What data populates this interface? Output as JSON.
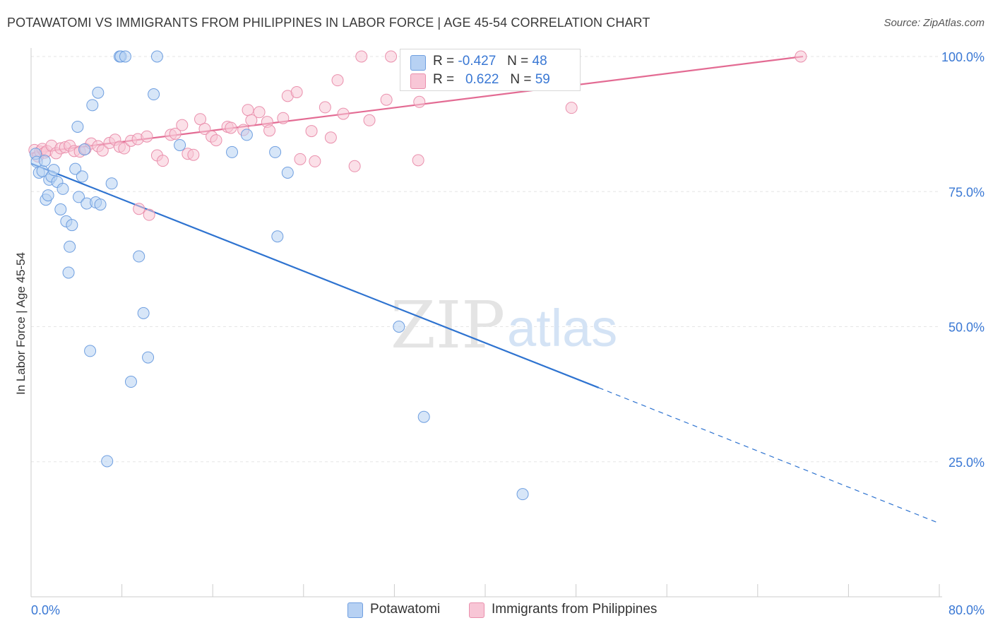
{
  "title": "POTAWATOMI VS IMMIGRANTS FROM PHILIPPINES IN LABOR FORCE | AGE 45-54 CORRELATION CHART",
  "source": "Source: ZipAtlas.com",
  "watermark": {
    "zip": "ZIP",
    "atlas": "atlas"
  },
  "legend": {
    "r_label": "R =",
    "n_label": "N =",
    "entries": [
      {
        "r": "-0.427",
        "n": "48"
      },
      {
        "r": "0.622",
        "n": "59"
      }
    ]
  },
  "colors": {
    "blue_fill": "#b7d1f3",
    "blue_stroke": "#6f9fe0",
    "blue_line": "#2e73d0",
    "pink_fill": "#f8c6d6",
    "pink_stroke": "#ea90ad",
    "pink_line": "#e36b93",
    "tick_text": "#3a78d4",
    "grid": "#e6e6e6"
  },
  "chart_data": {
    "type": "scatter",
    "xlabel": "",
    "ylabel": "In Labor Force | Age 45-54",
    "xlim": [
      0,
      80
    ],
    "ylim": [
      0,
      105
    ],
    "x_tick_labels": [
      {
        "value": 0,
        "label": "0.0%"
      },
      {
        "value": 80,
        "label": "80.0%"
      }
    ],
    "y_tick_labels": [
      {
        "value": 25,
        "label": "25.0%"
      },
      {
        "value": 50,
        "label": "50.0%"
      },
      {
        "value": 75,
        "label": "75.0%"
      },
      {
        "value": 100,
        "label": "100.0%"
      }
    ],
    "grid": "horizontal dashed",
    "legend_position": "top-center",
    "series": [
      {
        "name": "Potawatomi",
        "color": "#6f9fe0",
        "points": [
          [
            0.4,
            82
          ],
          [
            0.5,
            80.5
          ],
          [
            0.7,
            78.5
          ],
          [
            1.0,
            78.8
          ],
          [
            1.3,
            73.5
          ],
          [
            1.5,
            74.3
          ],
          [
            1.6,
            77.2
          ],
          [
            1.8,
            77.8
          ],
          [
            2.0,
            79
          ],
          [
            2.3,
            76.8
          ],
          [
            2.6,
            71.7
          ],
          [
            2.8,
            75.5
          ],
          [
            3.1,
            69.5
          ],
          [
            3.4,
            64.8
          ],
          [
            3.6,
            68.8
          ],
          [
            3.9,
            79.2
          ],
          [
            4.1,
            87
          ],
          [
            4.2,
            74
          ],
          [
            4.5,
            77.8
          ],
          [
            4.7,
            82.8
          ],
          [
            4.9,
            72.8
          ],
          [
            5.2,
            45.5
          ],
          [
            5.4,
            91
          ],
          [
            5.7,
            73
          ],
          [
            5.9,
            93.3
          ],
          [
            6.1,
            72.6
          ],
          [
            6.7,
            25.1
          ],
          [
            7.1,
            76.5
          ],
          [
            7.8,
            100
          ],
          [
            7.9,
            100
          ],
          [
            8.3,
            100
          ],
          [
            8.8,
            39.8
          ],
          [
            9.5,
            63
          ],
          [
            9.9,
            52.5
          ],
          [
            10.3,
            44.3
          ],
          [
            10.8,
            93
          ],
          [
            11.1,
            100
          ],
          [
            13.1,
            83.6
          ],
          [
            17.7,
            82.3
          ],
          [
            19.0,
            85.5
          ],
          [
            21.5,
            82.3
          ],
          [
            21.7,
            66.7
          ],
          [
            22.6,
            78.5
          ],
          [
            32.4,
            50
          ],
          [
            34.6,
            33.3
          ],
          [
            43.3,
            19
          ],
          [
            3.3,
            60
          ],
          [
            1.2,
            80.7
          ]
        ]
      },
      {
        "name": "Immigrants from Philippines",
        "color": "#ea90ad",
        "points": [
          [
            0.3,
            82.7
          ],
          [
            0.6,
            81.5
          ],
          [
            0.8,
            82.4
          ],
          [
            1.0,
            82.9
          ],
          [
            1.2,
            82.2
          ],
          [
            1.4,
            82.5
          ],
          [
            1.8,
            83.5
          ],
          [
            2.2,
            82.1
          ],
          [
            2.6,
            83.0
          ],
          [
            3.0,
            83.2
          ],
          [
            3.4,
            83.5
          ],
          [
            3.8,
            82.5
          ],
          [
            4.3,
            82.4
          ],
          [
            4.8,
            82.9
          ],
          [
            5.3,
            83.9
          ],
          [
            5.9,
            83.4
          ],
          [
            6.3,
            82.6
          ],
          [
            6.9,
            84.0
          ],
          [
            7.4,
            84.6
          ],
          [
            7.8,
            83.3
          ],
          [
            8.2,
            83.0
          ],
          [
            8.8,
            84.4
          ],
          [
            9.4,
            84.7
          ],
          [
            10.2,
            85.2
          ],
          [
            11.1,
            81.7
          ],
          [
            11.6,
            80.7
          ],
          [
            12.3,
            85.5
          ],
          [
            12.7,
            85.7
          ],
          [
            13.3,
            87.3
          ],
          [
            13.8,
            82.0
          ],
          [
            14.3,
            81.8
          ],
          [
            14.9,
            88.4
          ],
          [
            15.3,
            86.6
          ],
          [
            15.9,
            85.2
          ],
          [
            16.3,
            84.5
          ],
          [
            17.3,
            87.0
          ],
          [
            17.6,
            86.8
          ],
          [
            18.7,
            86.4
          ],
          [
            19.1,
            90.1
          ],
          [
            19.4,
            88.2
          ],
          [
            20.1,
            89.7
          ],
          [
            20.8,
            87.9
          ],
          [
            21.0,
            86.3
          ],
          [
            22.2,
            88.6
          ],
          [
            22.6,
            92.7
          ],
          [
            23.4,
            93.4
          ],
          [
            23.7,
            81.0
          ],
          [
            24.7,
            86.2
          ],
          [
            25.0,
            80.6
          ],
          [
            25.9,
            90.6
          ],
          [
            26.4,
            85.0
          ],
          [
            27.0,
            95.6
          ],
          [
            27.5,
            89.4
          ],
          [
            28.5,
            79.7
          ],
          [
            29.8,
            88.2
          ],
          [
            31.3,
            92.0
          ],
          [
            34.2,
            91.6
          ],
          [
            34.1,
            80.8
          ],
          [
            47.6,
            90.5
          ]
        ]
      }
    ],
    "extra_points": [
      {
        "series": "Immigrants from Philippines",
        "x": 9.5,
        "y": 71.8
      },
      {
        "series": "Immigrants from Philippines",
        "x": 10.4,
        "y": 70.7
      },
      {
        "series": "Immigrants from Philippines",
        "x": 29.1,
        "y": 100
      },
      {
        "series": "Immigrants from Philippines",
        "x": 31.7,
        "y": 100
      },
      {
        "series": "Immigrants from Philippines",
        "x": 67.8,
        "y": 100
      }
    ],
    "trendlines": [
      {
        "series": "Potawatomi",
        "x0": 0,
        "y0": 80.2,
        "x1": 50,
        "y1": 38.7,
        "dashed_to_x": 80,
        "dashed_to_y": 13.6
      },
      {
        "series": "Immigrants from Philippines",
        "x0": 0,
        "y0": 82.1,
        "x1": 68.0,
        "y1": 100
      }
    ]
  }
}
